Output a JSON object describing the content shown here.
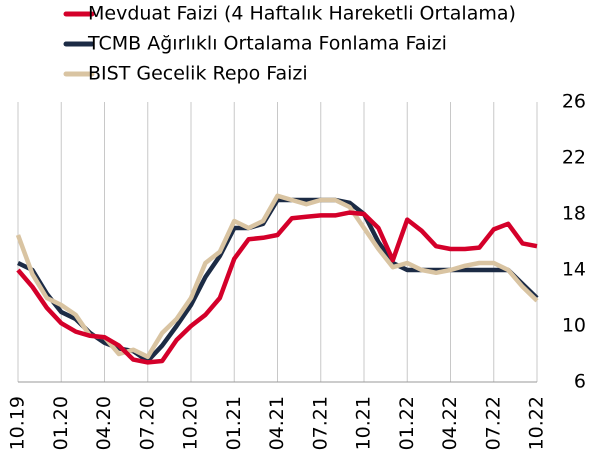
{
  "chart_data": {
    "type": "line",
    "categories": [
      "10.19",
      null,
      null,
      "01.20",
      null,
      null,
      "04.20",
      null,
      null,
      "07.20",
      null,
      null,
      "10.20",
      null,
      null,
      "01.21",
      null,
      null,
      "04.21",
      null,
      null,
      "07.21",
      null,
      null,
      "10.21",
      null,
      null,
      "01.22",
      null,
      null,
      "04.22",
      null,
      null,
      "07.22",
      null,
      null,
      "10.22"
    ],
    "series": [
      {
        "name": "Mevduat Faizi (4 Haftalık Hareketli Ortalama)",
        "color": "#d4002a",
        "values": [
          14.0,
          12.8,
          11.3,
          10.2,
          9.6,
          9.3,
          9.2,
          8.6,
          7.6,
          7.4,
          7.5,
          9.0,
          10.0,
          10.8,
          12.0,
          14.8,
          16.2,
          16.3,
          16.5,
          17.7,
          17.8,
          17.9,
          17.9,
          18.1,
          18.0,
          17.0,
          14.7,
          17.6,
          16.8,
          15.7,
          15.5,
          15.5,
          15.6,
          16.9,
          17.3,
          15.9,
          15.7
        ]
      },
      {
        "name": "TCMB Ağırlıklı Ortalama Fonlama Faizi",
        "color": "#1c2b45",
        "values": [
          14.5,
          14.0,
          12.3,
          11.0,
          10.5,
          9.5,
          8.8,
          8.4,
          8.2,
          7.5,
          8.6,
          10.0,
          11.5,
          13.5,
          15.0,
          17.0,
          17.0,
          17.3,
          19.0,
          19.0,
          19.0,
          19.0,
          19.0,
          18.8,
          18.0,
          16.0,
          14.5,
          14.0,
          14.0,
          14.0,
          14.0,
          14.0,
          14.0,
          14.0,
          14.0,
          13.0,
          12.0
        ]
      },
      {
        "name": "BIST Gecelik Repo Faizi",
        "color": "#d9c4a2",
        "values": [
          16.5,
          13.7,
          12.0,
          11.5,
          10.8,
          9.3,
          9.2,
          8.0,
          8.3,
          7.8,
          9.5,
          10.5,
          12.0,
          14.5,
          15.3,
          17.5,
          17.0,
          17.5,
          19.3,
          19.0,
          18.7,
          19.0,
          19.0,
          18.5,
          17.0,
          15.5,
          14.2,
          14.5,
          14.0,
          13.8,
          14.0,
          14.3,
          14.5,
          14.5,
          14.0,
          12.8,
          11.8
        ]
      }
    ],
    "ylim": [
      6,
      26
    ],
    "yticks": [
      6,
      10,
      14,
      18,
      22,
      26
    ],
    "y_axis_side": "right",
    "grid": true
  }
}
